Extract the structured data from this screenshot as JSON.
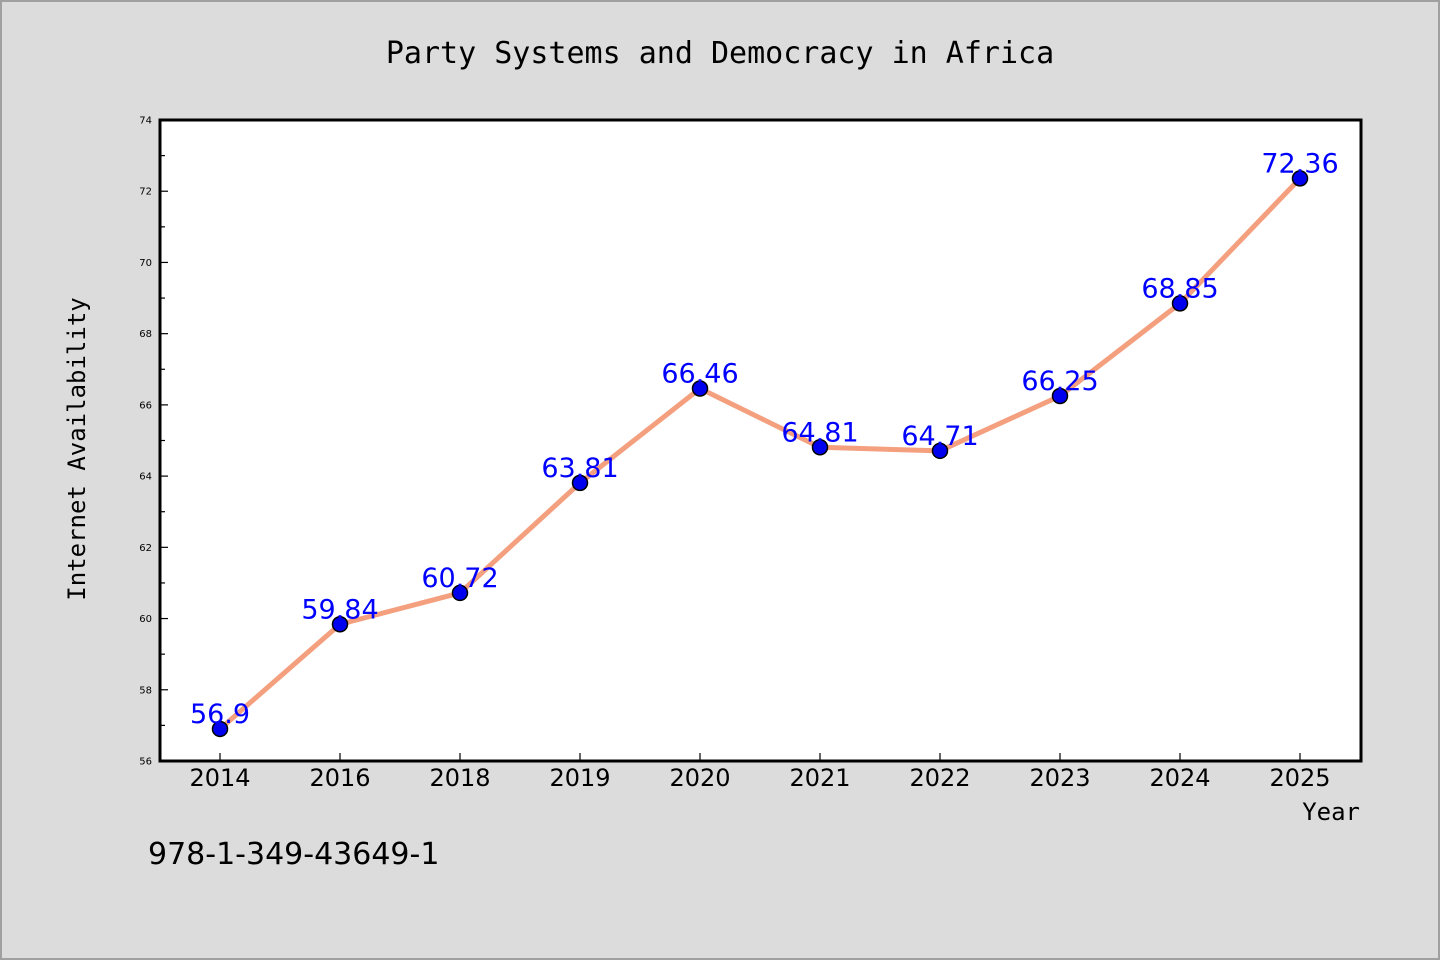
{
  "chart_data": {
    "type": "line",
    "title": "Party Systems and Democracy in Africa",
    "xlabel": "Year",
    "ylabel": "Internet Availability",
    "categories": [
      "2014",
      "2016",
      "2018",
      "2019",
      "2020",
      "2021",
      "2022",
      "2023",
      "2024",
      "2025"
    ],
    "series": [
      {
        "values": [
          56.9,
          59.84,
          60.72,
          63.81,
          66.46,
          64.81,
          64.71,
          66.25,
          68.85,
          72.36
        ],
        "labels": [
          "56.9",
          "59.84",
          "60.72",
          "63.81",
          "66.46",
          "64.81",
          "64.71",
          "66.25",
          "68.85",
          "72.36"
        ],
        "line_color": "#f4a07f",
        "marker_color": "#0000ee",
        "label_color": "#0000ff"
      }
    ],
    "ylim": [
      56,
      74
    ],
    "yticks": [
      "56",
      "58",
      "60",
      "62",
      "64",
      "66",
      "68",
      "70",
      "72",
      "74"
    ],
    "grid": false,
    "legend": "none"
  },
  "footer": {
    "isbn": "978-1-349-43649-1"
  },
  "colors": {
    "background": "#dcdcdc",
    "plot_background": "#ffffff"
  }
}
